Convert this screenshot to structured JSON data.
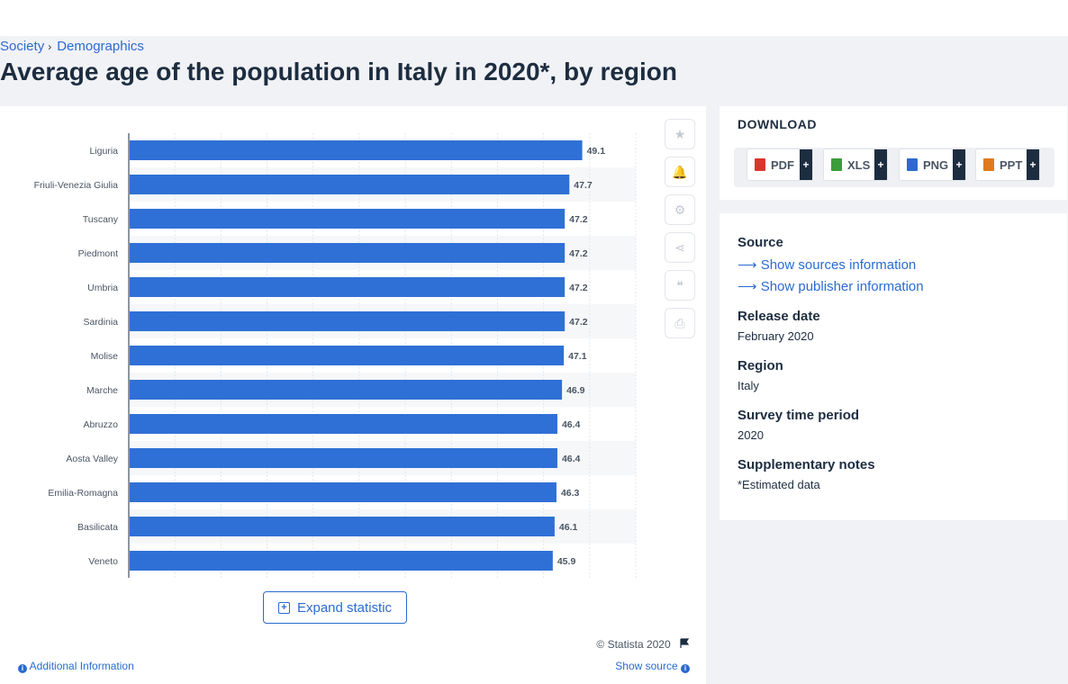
{
  "breadcrumb": {
    "items": [
      "Society",
      "Demographics"
    ],
    "separator": "›"
  },
  "page_title": "Average age of the population in Italy in 2020*, by region",
  "chart_data": {
    "type": "bar",
    "orientation": "horizontal",
    "categories": [
      "Liguria",
      "Friuli-Venezia Giulia",
      "Tuscany",
      "Piedmont",
      "Umbria",
      "Sardinia",
      "Molise",
      "Marche",
      "Abruzzo",
      "Aosta Valley",
      "Emilia-Romagna",
      "Basilicata",
      "Veneto"
    ],
    "values": [
      49.1,
      47.7,
      47.2,
      47.2,
      47.2,
      47.2,
      47.1,
      46.9,
      46.4,
      46.4,
      46.3,
      46.1,
      45.9
    ],
    "value_labels": [
      "49.1",
      "47.7",
      "47.2",
      "47.2",
      "47.2",
      "47.2",
      "47.1",
      "46.9",
      "46.4",
      "46.4",
      "46.3",
      "46.1",
      "45.9"
    ],
    "xlim": [
      0,
      55
    ],
    "bar_color": "#2f70d6",
    "grid": true,
    "title": "",
    "xlabel": "",
    "ylabel": ""
  },
  "chart_tools": {
    "icons": [
      "star-icon",
      "bell-icon",
      "gear-icon",
      "share-icon",
      "quote-icon",
      "print-icon"
    ],
    "glyphs": [
      "★",
      "🔔",
      "⚙",
      "⋖",
      "❝",
      "⎙"
    ]
  },
  "expand_button": "Expand statistic",
  "credit": "© Statista 2020",
  "additional_info": "Additional Information",
  "show_source": "Show source",
  "download": {
    "title": "DOWNLOAD",
    "buttons": [
      {
        "label": "PDF",
        "icon": "pdf-file-icon",
        "color": "#d9362b"
      },
      {
        "label": "XLS",
        "icon": "xls-file-icon",
        "color": "#3a9d3a"
      },
      {
        "label": "PNG",
        "icon": "png-file-icon",
        "color": "#2b6bd1"
      },
      {
        "label": "PPT",
        "icon": "ppt-file-icon",
        "color": "#e07a1f"
      }
    ],
    "plus": "+"
  },
  "info": {
    "source_label": "Source",
    "show_sources": "Show sources information",
    "show_publisher": "Show publisher information",
    "release_label": "Release date",
    "release_value": "February 2020",
    "region_label": "Region",
    "region_value": "Italy",
    "survey_label": "Survey time period",
    "survey_value": "2020",
    "notes_label": "Supplementary notes",
    "notes_value": "*Estimated data"
  },
  "colors": {
    "accent": "#2b6bd1",
    "title": "#1d2d40",
    "background": "#f1f2f6"
  }
}
